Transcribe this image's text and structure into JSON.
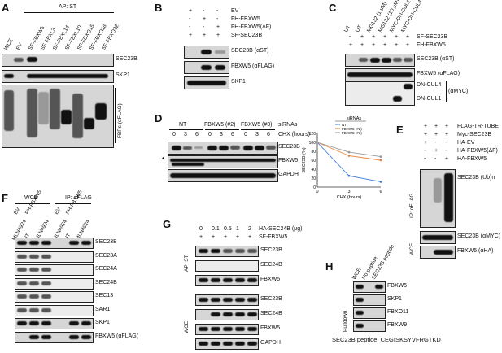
{
  "panelA": {
    "label": "A",
    "header": "AP: ST",
    "lanes": [
      "WCE",
      "EV",
      "SF-FBXW5",
      "SF-FBXL3",
      "SF-FBXL14",
      "SF-FBXL10",
      "SF-FBXO15",
      "SF-FBXO18",
      "SF-FBXO22"
    ],
    "rows": [
      "SEC23B",
      "SKP1",
      "FBPs (αFLAG)"
    ]
  },
  "panelB": {
    "label": "B",
    "conditions": [
      {
        "name": "EV",
        "marks": [
          "+",
          "-",
          "-"
        ]
      },
      {
        "name": "FH-FBXW5",
        "marks": [
          "-",
          "+",
          "-"
        ]
      },
      {
        "name": "FH-FBXW5(ΔF)",
        "marks": [
          "-",
          "-",
          "+"
        ]
      },
      {
        "name": "SF-SEC23B",
        "marks": [
          "+",
          "+",
          "+"
        ]
      }
    ],
    "rows": [
      "SEC23B (αST)",
      "FBXW5 (αFLAG)",
      "SKP1"
    ]
  },
  "panelC": {
    "label": "C",
    "lanes": [
      "UT",
      "UT",
      "MG132 (1 μM)",
      "MG132 (10 μM)",
      "MYC-DN-CUL1",
      "MYC-DN-CUL4"
    ],
    "conditions": [
      {
        "name": "SF-SEC23B",
        "marks": [
          "-",
          "+",
          "+",
          "+",
          "+",
          "+"
        ]
      },
      {
        "name": "FH-FBXW5",
        "marks": [
          "+",
          "+",
          "+",
          "+",
          "+",
          "+"
        ]
      }
    ],
    "rows": [
      "SEC23B (αST)",
      "FBXW5 (αFLAG)",
      "DN-CUL4",
      "DN-CUL1",
      "(αMYC)"
    ]
  },
  "panelD": {
    "label": "D",
    "groups": [
      "NT",
      "FBXW5 (#2)",
      "FBXW5 (#3)"
    ],
    "siRNAs": "siRNAs",
    "times": [
      "0",
      "3",
      "6",
      "0",
      "3",
      "6",
      "0",
      "3",
      "6"
    ],
    "chx": "CHX (hours)",
    "rows": [
      "SEC23B",
      "FBXW5",
      "GAPDH"
    ],
    "asterisk": "*"
  },
  "chart_data": {
    "type": "line",
    "title": "siRNAs",
    "xlabel": "CHX (hours)",
    "ylabel": "SEC23B (%)",
    "x": [
      0,
      3,
      6
    ],
    "xticks": [
      "0",
      "3",
      "6"
    ],
    "yticks": [
      "0",
      "20",
      "40",
      "60",
      "80",
      "100",
      "120"
    ],
    "ylim": [
      0,
      120
    ],
    "series": [
      {
        "name": "NT",
        "color": "#3a7bd5",
        "values": [
          100,
          25,
          12
        ]
      },
      {
        "name": "FBXW5 (#2)",
        "color": "#e8823a",
        "values": [
          100,
          70,
          60
        ]
      },
      {
        "name": "FBXW5 (#3)",
        "color": "#9a9a9a",
        "values": [
          100,
          78,
          68
        ]
      }
    ]
  },
  "panelE": {
    "label": "E",
    "conditions": [
      {
        "name": "FLAG-TR-TUBE",
        "marks": [
          "+",
          "+",
          "+"
        ]
      },
      {
        "name": "Myc-SEC23B",
        "marks": [
          "+",
          "+",
          "+"
        ]
      },
      {
        "name": "HA-EV",
        "marks": [
          "+",
          "-",
          "-"
        ]
      },
      {
        "name": "HA-FBXW5(ΔF)",
        "marks": [
          "-",
          "+",
          "-"
        ]
      },
      {
        "name": "HA-FBXW5",
        "marks": [
          "-",
          "-",
          "+"
        ]
      }
    ],
    "sections": [
      "IP: αFLAG",
      "WCE"
    ],
    "rows": [
      "SEC23B (Ub)n",
      "SEC23B (αMYC)",
      "FBXW5 (αHA)"
    ]
  },
  "panelF": {
    "label": "F",
    "wce": "WCE",
    "ip": "IP: αFLAG",
    "lanes": [
      "EV",
      "FH-FBXW5"
    ],
    "sublanes": [
      "MLN4924",
      "UT",
      "MLN4924",
      "MLN4924",
      "UT",
      "MLN4924"
    ],
    "rows": [
      "SEC23B",
      "SEC23A",
      "SEC24A",
      "SEC24B",
      "SEC13",
      "SAR1",
      "SKP1",
      "FBXW5 (αFLAG)"
    ]
  },
  "panelG": {
    "label": "G",
    "conditions": [
      {
        "name": "HA-SEC24B (μg)",
        "marks": [
          "0",
          "0.1",
          "0.5",
          "1",
          "2"
        ]
      },
      {
        "name": "SF-FBXW5",
        "marks": [
          "+",
          "+",
          "+",
          "+",
          "+"
        ]
      }
    ],
    "sections": [
      "AP: ST",
      "WCE"
    ],
    "rows": [
      "SEC23B",
      "SEC24B",
      "FBXW5",
      "SEC23B",
      "SEC24B",
      "FBXW5",
      "GAPDH"
    ]
  },
  "panelH": {
    "label": "H",
    "lanes": [
      "WCE",
      "No peptide",
      "SEC23B peptide"
    ],
    "section": "Pulldown",
    "rows": [
      "FBXW5",
      "SKP1",
      "FBXO11",
      "FBXW9"
    ],
    "peptide": "SEC23B peptide: CEGISKSYVFRGTKD"
  }
}
